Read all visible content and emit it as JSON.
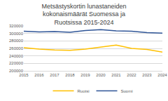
{
  "chart_data": {
    "type": "line",
    "title": "Metsästyskortin lunastaneiden kokonaismäärät Suomessa ja Ruotsissa 2015-2024",
    "categories": [
      "2015",
      "2016",
      "2017",
      "2018",
      "2019",
      "2020",
      "2021",
      "2022",
      "2023",
      "2024"
    ],
    "series": [
      {
        "name": "Ruotsi",
        "color": "#ffc000",
        "values": [
          262000,
          258000,
          256000,
          255000,
          258000,
          264000,
          269000,
          260000,
          257000,
          250000
        ]
      },
      {
        "name": "Suomi",
        "color": "#2f5597",
        "values": [
          306000,
          304000,
          305000,
          303000,
          308000,
          310000,
          307000,
          306000,
          302000,
          301000
        ]
      }
    ],
    "ylim": [
      200000,
      320000
    ],
    "yticks": [
      200000,
      220000,
      240000,
      260000,
      280000,
      300000,
      320000
    ],
    "grid": true,
    "legend": "bottom"
  }
}
